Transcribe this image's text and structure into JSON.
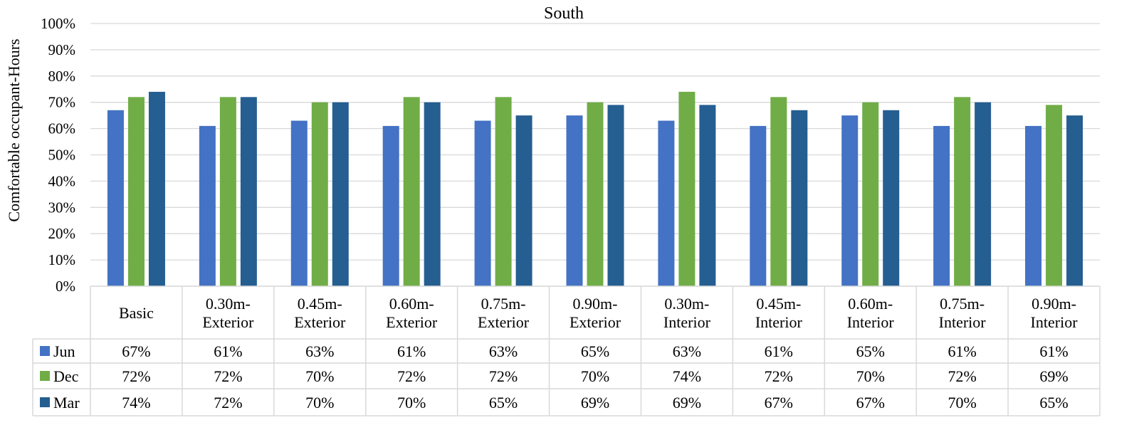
{
  "chart_data": {
    "type": "bar",
    "title": "South",
    "ylabel": "Comfortable occupant-Hours",
    "xlabel": "",
    "ylim": [
      0,
      100
    ],
    "y_ticks": [
      "0%",
      "10%",
      "20%",
      "30%",
      "40%",
      "50%",
      "60%",
      "70%",
      "80%",
      "90%",
      "100%"
    ],
    "grid": true,
    "legend": "data-table",
    "categories": [
      [
        "Basic"
      ],
      [
        "0.30m-",
        "Exterior"
      ],
      [
        "0.45m-",
        "Exterior"
      ],
      [
        "0.60m-",
        "Exterior"
      ],
      [
        "0.75m-",
        "Exterior"
      ],
      [
        "0.90m-",
        "Exterior"
      ],
      [
        "0.30m-",
        "Interior"
      ],
      [
        "0.45m-",
        "Interior"
      ],
      [
        "0.60m-",
        "Interior"
      ],
      [
        "0.75m-",
        "Interior"
      ],
      [
        "0.90m-",
        "Interior"
      ]
    ],
    "series": [
      {
        "name": "Jun",
        "color": "#4472c4",
        "values": [
          67,
          61,
          63,
          61,
          63,
          65,
          63,
          61,
          65,
          61,
          61
        ],
        "labels": [
          "67%",
          "61%",
          "63%",
          "61%",
          "63%",
          "65%",
          "63%",
          "61%",
          "65%",
          "61%",
          "61%"
        ]
      },
      {
        "name": "Dec",
        "color": "#70ad47",
        "values": [
          72,
          72,
          70,
          72,
          72,
          70,
          74,
          72,
          70,
          72,
          69
        ],
        "labels": [
          "72%",
          "72%",
          "70%",
          "72%",
          "72%",
          "70%",
          "74%",
          "72%",
          "70%",
          "72%",
          "69%"
        ]
      },
      {
        "name": "Mar",
        "color": "#255e91",
        "values": [
          74,
          72,
          70,
          70,
          65,
          69,
          69,
          67,
          67,
          70,
          65
        ],
        "labels": [
          "74%",
          "72%",
          "70%",
          "70%",
          "65%",
          "69%",
          "69%",
          "67%",
          "67%",
          "70%",
          "65%"
        ]
      }
    ]
  }
}
